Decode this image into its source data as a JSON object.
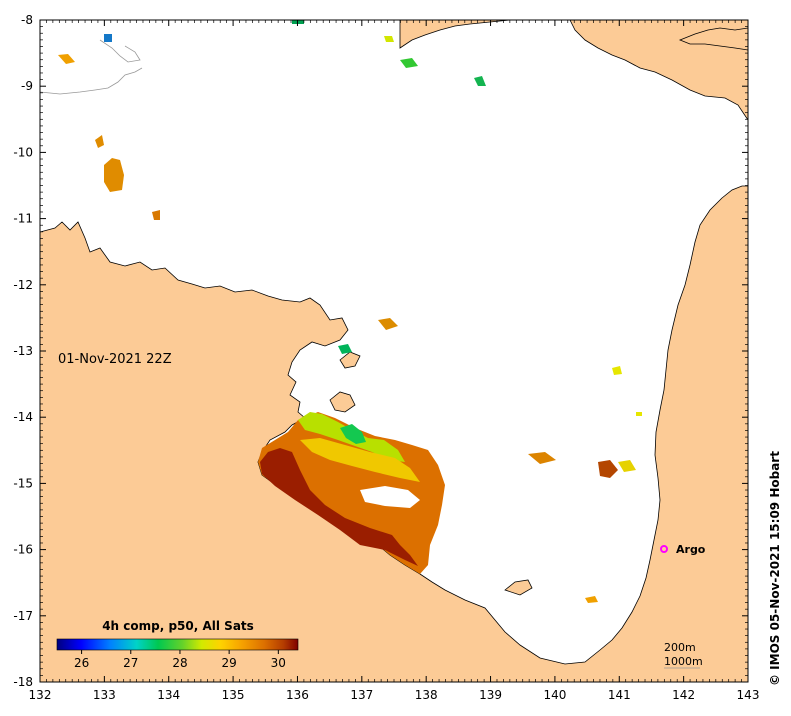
{
  "map": {
    "date_label": "01-Nov-2021 22Z",
    "credit": "© IMOS 05-Nov-2021 15:09 Hobart",
    "colorbar_title": "4h comp, p50, All Sats",
    "colorbar_ticks": [
      "26",
      "27",
      "28",
      "29",
      "30"
    ],
    "colorbar_range": [
      25.5,
      30.4
    ],
    "colors": {
      "land": "#fccb96",
      "ocean": "#ffffff",
      "frame": "#000000",
      "argo": "#ff00ff",
      "contour": "#999999"
    },
    "colormap": [
      "#00007f",
      "#0000ff",
      "#007fff",
      "#00d2c8",
      "#00c850",
      "#32c832",
      "#96dc1e",
      "#e6ee00",
      "#ffc800",
      "#f09600",
      "#dc7800",
      "#c84b00",
      "#a02800",
      "#7f0000"
    ],
    "argo": {
      "label": "Argo",
      "lon": 141.7,
      "lat": -16.0
    },
    "bathymetry_legend": [
      "200m",
      "1000m"
    ]
  },
  "axes": {
    "x_ticks": [
      "132",
      "133",
      "134",
      "135",
      "136",
      "137",
      "138",
      "139",
      "140",
      "141",
      "142",
      "143"
    ],
    "y_ticks": [
      "-8",
      "-9",
      "-10",
      "-11",
      "-12",
      "-13",
      "-14",
      "-15",
      "-16",
      "-17",
      "-18"
    ],
    "lon_range": [
      132,
      143
    ],
    "lat_range": [
      -18,
      -8
    ]
  }
}
